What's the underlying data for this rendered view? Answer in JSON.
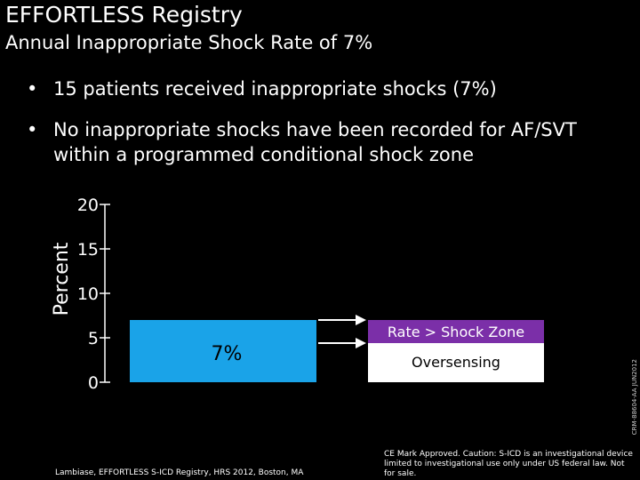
{
  "slide": {
    "title": "EFFORTLESS Registry",
    "subtitle": "Annual Inappropriate Shock Rate of 7%",
    "bullets": [
      {
        "marker": "•",
        "text": "15 patients received inappropriate shocks (7%)"
      },
      {
        "marker": "•",
        "text": "No inappropriate shocks have been recorded for AF/SVT within a programmed conditional shock zone"
      }
    ],
    "citation": "Lambiase, EFFORTLESS S-ICD Registry, HRS 2012, Boston, MA",
    "caution": "CE Mark Approved. Caution: S-ICD is an investigational device limited to investigational use only under US federal law. Not for sale.",
    "doc_code": "CRM-88604-AA JUN2012"
  },
  "chart_data": {
    "type": "bar",
    "ylabel": "Percent",
    "ylim": [
      0,
      20
    ],
    "yticks": [
      0,
      5,
      10,
      15,
      20
    ],
    "grid": false,
    "categories": [
      ""
    ],
    "values": [
      7
    ],
    "bar_label": "7%",
    "bar_color": "#1aa3e8",
    "breakdown": [
      {
        "label": "Rate > Shock Zone",
        "color": "#7b2fa8",
        "text_color": "#ffffff"
      },
      {
        "label": "Oversensing",
        "color": "#ffffff",
        "text_color": "#000000"
      }
    ]
  }
}
